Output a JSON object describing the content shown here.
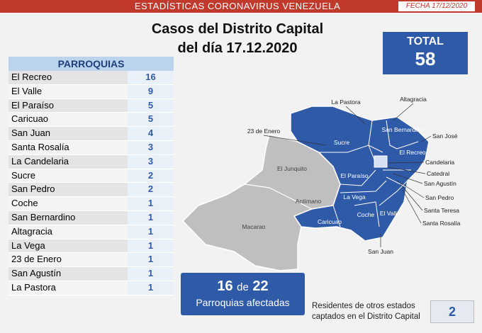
{
  "header": {
    "title": "ESTADÍSTICAS CORONAVIRUS VENEZUELA",
    "date": "FECHA 17/12/2020"
  },
  "title": {
    "line1": "Casos del Distrito Capital",
    "line2": "del día 17.12.2020"
  },
  "total": {
    "label": "TOTAL",
    "value": 58
  },
  "table": {
    "header": "PARROQUIAS",
    "rows": [
      [
        "El Recreo",
        16
      ],
      [
        "El Valle",
        9
      ],
      [
        "El Paraíso",
        5
      ],
      [
        "Caricuao",
        5
      ],
      [
        "San Juan",
        4
      ],
      [
        "Santa Rosalía",
        3
      ],
      [
        "La Candelaria",
        3
      ],
      [
        "Sucre",
        2
      ],
      [
        "San Pedro",
        2
      ],
      [
        "Coche",
        1
      ],
      [
        "San Bernardino",
        1
      ],
      [
        "Altagracia",
        1
      ],
      [
        "La Vega",
        1
      ],
      [
        "23 de Enero",
        1
      ],
      [
        "San Agustín",
        1
      ],
      [
        "La Pastora",
        1
      ]
    ]
  },
  "summary": {
    "affected": 16,
    "of": "de",
    "total": 22,
    "label": "Parroquias afectadas"
  },
  "residents": {
    "text1": "Residentes de otros estados",
    "text2": "captados en el Distrito Capital",
    "value": 2
  },
  "map": {
    "labels": [
      "La Pastora",
      "Altagracia",
      "23 de Enero",
      "Sucre",
      "San Bernardino",
      "San José",
      "El Recreo",
      "El Junquito",
      "El Paraíso",
      "Candelaria",
      "Catedral",
      "San Agustín",
      "La Vega",
      "Antímano",
      "San Pedro",
      "Santa Teresa",
      "Santa Rosalía",
      "Coche",
      "El Valle",
      "Caricuao",
      "Macarao",
      "San Juan"
    ]
  }
}
